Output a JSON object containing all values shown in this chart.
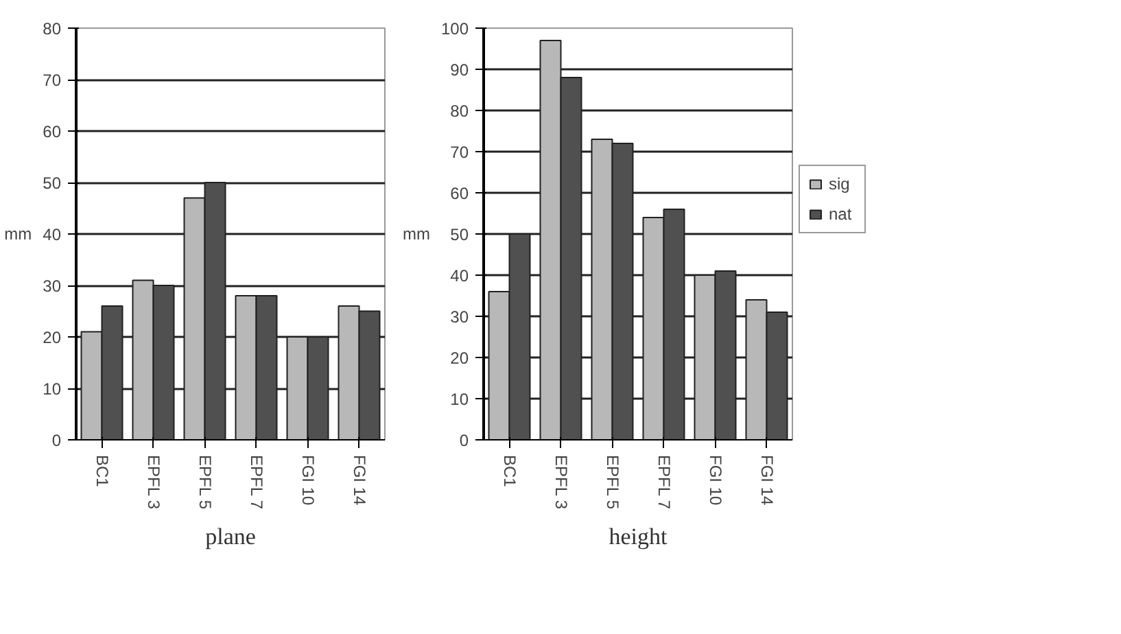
{
  "chart_data": [
    {
      "type": "bar",
      "title": "plane",
      "ylabel": "mm",
      "categories": [
        "BC1",
        "EPFL 3",
        "EPFL 5",
        "EPFL 7",
        "FGI 10",
        "FGI 14"
      ],
      "series": [
        {
          "color": "#b8b8b8",
          "values": [
            21,
            31,
            47,
            28,
            20,
            26
          ]
        },
        {
          "color": "#505050",
          "values": [
            26,
            30,
            50,
            28,
            20,
            25
          ]
        }
      ],
      "ylim": [
        0,
        80
      ],
      "yticks": [
        0,
        10,
        20,
        30,
        40,
        50,
        60,
        70,
        80
      ],
      "grid": "y"
    },
    {
      "type": "bar",
      "title": "height",
      "ylabel": "mm",
      "categories": [
        "BC1",
        "EPFL 3",
        "EPFL 5",
        "EPFL 7",
        "FGI 10",
        "FGI 14"
      ],
      "series": [
        {
          "name": "sig",
          "color": "#b8b8b8",
          "values": [
            36,
            97,
            73,
            54,
            40,
            34
          ]
        },
        {
          "name": "nat",
          "color": "#505050",
          "values": [
            50,
            88,
            72,
            56,
            41,
            31
          ]
        }
      ],
      "ylim": [
        0,
        100
      ],
      "yticks": [
        0,
        10,
        20,
        30,
        40,
        50,
        60,
        70,
        80,
        90,
        100
      ],
      "grid": "y",
      "legend": "right"
    }
  ]
}
